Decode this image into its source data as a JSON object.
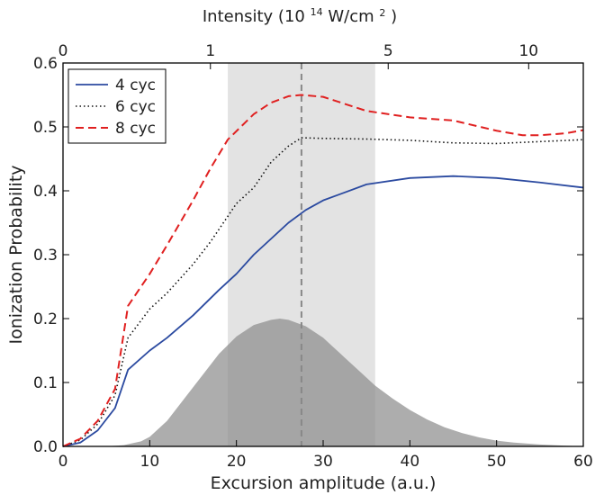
{
  "chart_data": {
    "type": "line",
    "xlabel": "Excursion amplitude (a.u.)",
    "ylabel": "Ionization Probability",
    "xlim": [
      0,
      60
    ],
    "ylim": [
      0,
      0.6
    ],
    "xticks": [
      0,
      10,
      20,
      30,
      40,
      50,
      60
    ],
    "xtick_labels": [
      "0",
      "10",
      "20",
      "30",
      "40",
      "50",
      "60"
    ],
    "yticks": [
      0,
      0.1,
      0.2,
      0.3,
      0.4,
      0.5,
      0.6
    ],
    "ytick_labels": [
      "0.0",
      "0.1",
      "0.2",
      "0.3",
      "0.4",
      "0.5",
      "0.6"
    ],
    "top_axis": {
      "label_main": "Intensity (10",
      "label_sup": "14",
      "label_tail": "W/cm",
      "label_sup2": "2",
      "label_end": " )",
      "ticks": [
        {
          "x": 0,
          "label": "0"
        },
        {
          "x": 17,
          "label": "1"
        },
        {
          "x": 37.5,
          "label": "5"
        },
        {
          "x": 53.7,
          "label": "10"
        }
      ]
    },
    "legend_position": "top-left",
    "grid": false,
    "series": [
      {
        "name": "4 cyc",
        "color": "#2b4aa0",
        "style": "solid",
        "x": [
          0,
          2,
          4,
          6,
          7.5,
          10,
          12,
          15,
          18,
          20,
          22,
          24,
          26,
          28,
          30,
          32,
          35,
          40,
          45,
          50,
          55,
          60
        ],
        "y": [
          0,
          0.006,
          0.025,
          0.06,
          0.12,
          0.15,
          0.17,
          0.205,
          0.245,
          0.27,
          0.3,
          0.325,
          0.35,
          0.37,
          0.385,
          0.395,
          0.41,
          0.42,
          0.423,
          0.42,
          0.413,
          0.405
        ]
      },
      {
        "name": "6 cyc",
        "color": "#111111",
        "style": "dotted",
        "x": [
          0,
          2,
          4,
          6,
          7.5,
          10,
          12,
          15,
          17,
          20,
          22,
          24,
          26,
          27.5,
          30,
          35,
          40,
          45,
          50,
          55,
          60
        ],
        "y": [
          0,
          0.01,
          0.035,
          0.08,
          0.17,
          0.215,
          0.24,
          0.285,
          0.32,
          0.38,
          0.405,
          0.445,
          0.47,
          0.483,
          0.482,
          0.481,
          0.479,
          0.475,
          0.474,
          0.477,
          0.48
        ]
      },
      {
        "name": "8 cyc",
        "color": "#e02020",
        "style": "dashed",
        "x": [
          0,
          2,
          4,
          6,
          7.5,
          10,
          12,
          15,
          17,
          19,
          22,
          24,
          26,
          27.5,
          30,
          35,
          40,
          45,
          50,
          53,
          55,
          58,
          60
        ],
        "y": [
          0,
          0.012,
          0.04,
          0.09,
          0.22,
          0.27,
          0.315,
          0.385,
          0.435,
          0.48,
          0.52,
          0.538,
          0.548,
          0.55,
          0.547,
          0.525,
          0.515,
          0.51,
          0.494,
          0.487,
          0.487,
          0.49,
          0.495
        ]
      }
    ],
    "distribution": {
      "color": "#8a8a8a",
      "x": [
        0,
        5,
        7,
        9,
        10,
        12,
        14,
        16,
        18,
        20,
        22,
        24,
        25,
        26,
        28,
        30,
        32,
        34,
        36,
        38,
        40,
        42,
        44,
        46,
        48,
        50,
        52,
        55,
        58,
        60
      ],
      "y": [
        0,
        0,
        0.002,
        0.008,
        0.015,
        0.04,
        0.075,
        0.11,
        0.145,
        0.172,
        0.19,
        0.198,
        0.2,
        0.198,
        0.188,
        0.17,
        0.145,
        0.12,
        0.095,
        0.075,
        0.057,
        0.042,
        0.03,
        0.021,
        0.014,
        0.009,
        0.006,
        0.003,
        0.001,
        0
      ]
    },
    "shaded_band": {
      "x_min": 19,
      "x_max": 36,
      "color": "#d9d9d9"
    },
    "vline": {
      "x": 27.5,
      "color": "#888888",
      "style": "dashed"
    }
  }
}
